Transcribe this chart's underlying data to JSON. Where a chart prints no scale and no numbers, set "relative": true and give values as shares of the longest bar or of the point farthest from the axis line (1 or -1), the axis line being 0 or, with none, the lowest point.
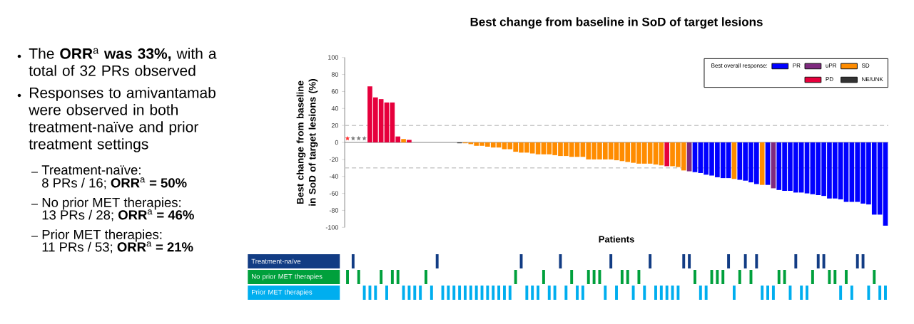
{
  "chart_data": [
    {
      "type": "bar",
      "title": "Best change from baseline in SoD of target lesions",
      "xlabel": "Patients",
      "ylabel": "Best change from baseline in SoD of target lesions (%)",
      "categories": [
        null,
        null,
        null,
        null,
        null,
        null,
        null,
        null,
        null,
        null,
        null,
        null,
        null,
        null,
        null,
        null,
        null,
        null,
        null,
        null,
        null,
        null,
        null,
        null,
        null,
        null,
        null,
        null,
        null,
        null,
        null,
        null,
        null,
        null,
        null,
        null,
        null,
        null,
        null,
        null,
        null,
        null,
        null,
        null,
        null,
        null,
        null,
        null,
        null,
        null,
        null,
        null,
        null,
        null,
        null,
        null,
        null,
        null,
        null,
        null,
        null,
        null,
        null,
        null,
        null,
        null,
        null,
        null,
        null,
        null,
        null,
        null,
        null,
        null,
        null,
        null,
        null,
        null,
        null,
        null,
        null,
        null,
        null,
        null,
        null,
        null,
        null,
        null,
        null,
        null,
        null,
        null,
        null,
        null,
        null,
        null,
        null
      ],
      "ylim": [
        -100,
        100
      ],
      "yticks": [
        -100,
        -80,
        -60,
        -40,
        -20,
        0,
        20,
        40,
        60,
        80,
        100
      ],
      "legend": "top right",
      "legend_title": "Best overall response:",
      "marker": "star",
      "series": [
        {
          "name": "PR",
          "color": "#0000ff",
          "values": [
            null,
            null,
            null,
            null,
            null,
            null,
            null,
            null,
            null,
            null,
            null,
            null,
            null,
            null,
            null,
            null,
            null,
            null,
            null,
            null,
            null,
            null,
            null,
            null,
            null,
            null,
            null,
            null,
            null,
            null,
            null,
            null,
            null,
            null,
            null,
            null,
            null,
            null,
            null,
            null,
            null,
            null,
            null,
            null,
            null,
            null,
            null,
            null,
            null,
            null,
            null,
            null,
            null,
            null,
            null,
            null,
            null,
            null,
            null,
            null,
            null,
            null,
            -35,
            -36,
            -38,
            -39,
            -41,
            -42,
            -42,
            null,
            -44,
            -45,
            -47,
            -49,
            null,
            -50,
            null,
            -56,
            -57,
            -57,
            -59,
            -59,
            -60,
            -61,
            -62,
            -63,
            -66,
            -66,
            -67,
            -70,
            -70,
            -70,
            -72,
            -73,
            -85,
            -85,
            -98
          ]
        },
        {
          "name": "uPR",
          "color": "#7f2a7f",
          "values": [
            null,
            null,
            null,
            null,
            null,
            null,
            null,
            null,
            null,
            null,
            null,
            null,
            null,
            null,
            null,
            null,
            null,
            null,
            null,
            null,
            null,
            null,
            null,
            null,
            null,
            null,
            null,
            null,
            null,
            null,
            null,
            null,
            null,
            null,
            null,
            null,
            null,
            null,
            null,
            null,
            null,
            null,
            null,
            null,
            null,
            null,
            null,
            null,
            null,
            null,
            null,
            null,
            null,
            null,
            null,
            null,
            null,
            null,
            null,
            null,
            null,
            -34,
            null,
            null,
            null,
            null,
            null,
            null,
            null,
            null,
            null,
            null,
            null,
            null,
            null,
            null,
            -54,
            null,
            null,
            null,
            null,
            null,
            null,
            null,
            null,
            null,
            null,
            null,
            null,
            null,
            null,
            null,
            null,
            null,
            null,
            null,
            null
          ]
        },
        {
          "name": "SD",
          "color": "#ff8c00",
          "values": [
            null,
            null,
            null,
            null,
            null,
            null,
            null,
            null,
            null,
            null,
            4,
            null,
            0,
            0,
            0,
            0,
            0,
            0,
            0,
            0,
            null,
            -1,
            -2,
            -4,
            -4,
            -5,
            -6,
            -6,
            -8,
            -8,
            -11,
            -12,
            -12,
            -13,
            -14,
            -14,
            -14,
            -15,
            -16,
            -16,
            -17,
            -17,
            -17,
            -20,
            -20,
            -20,
            -20,
            -20,
            -21,
            -22,
            -23,
            -24,
            -25,
            -25,
            -25,
            -26,
            -27,
            null,
            -28,
            -29,
            -33,
            null,
            null,
            null,
            null,
            null,
            null,
            null,
            null,
            -43,
            null,
            null,
            null,
            null,
            -50,
            null,
            null,
            null,
            null,
            null,
            null,
            null,
            null,
            null,
            null,
            null,
            null,
            null,
            null,
            null,
            null,
            null,
            null,
            null,
            null,
            null,
            null
          ]
        },
        {
          "name": "PD",
          "color": "#e6003c",
          "values": [
            null,
            null,
            null,
            null,
            66,
            53,
            51,
            47,
            47,
            7,
            null,
            3,
            null,
            null,
            null,
            null,
            null,
            null,
            null,
            null,
            null,
            null,
            null,
            null,
            null,
            null,
            null,
            null,
            null,
            null,
            null,
            null,
            null,
            null,
            null,
            null,
            null,
            null,
            null,
            null,
            null,
            null,
            null,
            null,
            null,
            null,
            null,
            null,
            null,
            null,
            null,
            null,
            null,
            null,
            null,
            null,
            null,
            -28,
            null,
            null,
            null,
            null,
            null,
            null,
            null,
            null,
            null,
            null,
            null,
            null,
            null,
            null,
            null,
            null,
            null,
            null,
            null,
            null,
            null,
            null,
            null,
            null,
            null,
            null,
            null,
            null,
            null,
            null,
            null,
            null,
            null,
            null,
            null,
            null,
            null,
            null,
            null
          ]
        },
        {
          "name": "NE/UNK",
          "color": "#333333",
          "values": [
            null,
            null,
            null,
            null,
            null,
            null,
            null,
            null,
            null,
            null,
            null,
            null,
            null,
            null,
            null,
            null,
            null,
            null,
            null,
            null,
            -1,
            null,
            null,
            null,
            null,
            null,
            null,
            null,
            null,
            null,
            null,
            null,
            null,
            null,
            null,
            null,
            null,
            null,
            null,
            null,
            null,
            null,
            null,
            null,
            null,
            null,
            null,
            null,
            null,
            null,
            null,
            null,
            null,
            null,
            null,
            null,
            null,
            null,
            null,
            null,
            null,
            null,
            null,
            null,
            null,
            null,
            null,
            null,
            null,
            null,
            null,
            null,
            null,
            null,
            null,
            null,
            null,
            null,
            null,
            null,
            null,
            null,
            null,
            null,
            null,
            null,
            null,
            null,
            null,
            null,
            null,
            null,
            null,
            null,
            null,
            null,
            null
          ]
        },
        {
          "type": "scatter",
          "color": "#ff3333",
          "values": [
            5,
            null,
            null,
            null,
            null,
            null,
            null,
            null,
            null,
            null,
            null,
            null,
            null,
            null,
            null,
            null,
            null,
            null,
            null,
            null,
            null,
            null,
            null,
            null,
            null,
            null,
            null,
            null,
            null,
            null,
            null,
            null,
            null,
            null,
            null,
            null,
            null,
            null,
            null,
            null,
            null,
            null,
            null,
            null,
            null,
            null,
            null,
            null,
            null,
            null,
            null,
            null,
            null,
            null,
            null,
            null,
            null,
            null,
            null,
            null,
            null,
            null,
            null,
            null,
            null,
            null,
            null,
            null,
            null,
            null,
            null,
            null,
            null,
            null,
            null,
            null,
            null,
            null,
            null,
            null,
            null,
            null,
            null,
            null,
            null,
            null,
            null,
            null,
            null,
            null,
            null,
            null,
            null,
            null,
            null,
            null,
            null
          ]
        },
        {
          "type": "scatter",
          "color": "#808080",
          "values": [
            null,
            5,
            5,
            5,
            null,
            null,
            null,
            null,
            null,
            null,
            null,
            null,
            null,
            null,
            null,
            null,
            null,
            null,
            null,
            null,
            null,
            null,
            null,
            null,
            null,
            null,
            null,
            null,
            null,
            null,
            null,
            null,
            null,
            null,
            null,
            null,
            null,
            null,
            null,
            null,
            null,
            null,
            null,
            null,
            null,
            null,
            null,
            null,
            null,
            null,
            null,
            null,
            null,
            null,
            null,
            null,
            null,
            null,
            null,
            null,
            null,
            null,
            null,
            null,
            null,
            null,
            null,
            null,
            null,
            null,
            null,
            null,
            null,
            null,
            null,
            null,
            null,
            null,
            null,
            null,
            null,
            null,
            null,
            null,
            null,
            null,
            null,
            null,
            null,
            null,
            null,
            null,
            null,
            null,
            null,
            null,
            null
          ]
        }
      ],
      "ref_lines": [
        {
          "axis": "y",
          "value": 20,
          "color": "#c8c8c8",
          "line_style": "dashed"
        },
        {
          "axis": "y",
          "value": -30,
          "color": "#c8c8c8",
          "line_style": "dashed"
        }
      ],
      "annotations": [
        "The **ORR**$^{a}$ **was 33%,** with a total of 32 PRs observed",
        "Responses to amivantamab were observed in both treatment-naïve and prior treatment settings",
        "Treatment-naïve:",
        "8 PRs / 16; **ORR**$^{a}$ **= 50%**",
        "No prior MET therapies:",
        "13 PRs / 28; **ORR**$^{a}$ **= 46%**",
        "Prior MET therapies:",
        "11 PRs / 53; **ORR**$^{a}$ **= 21%**"
      ]
    },
    {
      "type": "bar",
      "relative": true,
      "categories": [
        null,
        null,
        null,
        null,
        null,
        null,
        null,
        null,
        null,
        null,
        null,
        null,
        null,
        null,
        null,
        null,
        null,
        null,
        null,
        null,
        null,
        null,
        null,
        null,
        null,
        null,
        null,
        null,
        null,
        null,
        null,
        null,
        null,
        null,
        null,
        null,
        null,
        null,
        null,
        null,
        null,
        null,
        null,
        null,
        null,
        null,
        null,
        null,
        null,
        null,
        null,
        null,
        null,
        null,
        null,
        null,
        null,
        null,
        null,
        null,
        null,
        null,
        null,
        null,
        null,
        null,
        null,
        null,
        null,
        null,
        null,
        null,
        null,
        null,
        null,
        null,
        null,
        null,
        null,
        null,
        null,
        null,
        null,
        null,
        null,
        null,
        null,
        null,
        null,
        null,
        null,
        null,
        null,
        null,
        null,
        null,
        null
      ],
      "series": [
        {
          "name": "Treatment-naïve",
          "color": "#123c84",
          "values": [
            null,
            1,
            null,
            null,
            null,
            null,
            null,
            null,
            null,
            null,
            null,
            null,
            null,
            null,
            null,
            null,
            1,
            null,
            null,
            null,
            null,
            null,
            null,
            null,
            null,
            null,
            null,
            null,
            null,
            null,
            null,
            1,
            null,
            null,
            null,
            null,
            null,
            null,
            1,
            null,
            null,
            null,
            null,
            null,
            null,
            null,
            null,
            1,
            null,
            null,
            null,
            null,
            null,
            null,
            1,
            null,
            null,
            null,
            null,
            null,
            1,
            1,
            null,
            null,
            null,
            null,
            null,
            null,
            1,
            null,
            null,
            1,
            null,
            1,
            null,
            null,
            null,
            null,
            null,
            null,
            1,
            null,
            null,
            null,
            1,
            1,
            null,
            null,
            null,
            null,
            null,
            1,
            1,
            null,
            null,
            null,
            null
          ]
        }
      ]
    },
    {
      "type": "bar",
      "relative": true,
      "categories": [
        null,
        null,
        null,
        null,
        null,
        null,
        null,
        null,
        null,
        null,
        null,
        null,
        null,
        null,
        null,
        null,
        null,
        null,
        null,
        null,
        null,
        null,
        null,
        null,
        null,
        null,
        null,
        null,
        null,
        null,
        null,
        null,
        null,
        null,
        null,
        null,
        null,
        null,
        null,
        null,
        null,
        null,
        null,
        null,
        null,
        null,
        null,
        null,
        null,
        null,
        null,
        null,
        null,
        null,
        null,
        null,
        null,
        null,
        null,
        null,
        null,
        null,
        null,
        null,
        null,
        null,
        null,
        null,
        null,
        null,
        null,
        null,
        null,
        null,
        null,
        null,
        null,
        null,
        null,
        null,
        null,
        null,
        null,
        null,
        null,
        null,
        null,
        null,
        null,
        null,
        null,
        null,
        null,
        null,
        null,
        null,
        null
      ],
      "series": [
        {
          "name": "No prior MET therapies",
          "color": "#00a03c",
          "values": [
            1,
            null,
            1,
            null,
            null,
            null,
            1,
            null,
            1,
            1,
            null,
            null,
            null,
            null,
            1,
            null,
            null,
            null,
            null,
            null,
            null,
            null,
            null,
            null,
            null,
            null,
            null,
            null,
            null,
            null,
            1,
            null,
            null,
            null,
            null,
            1,
            null,
            null,
            null,
            null,
            1,
            null,
            null,
            1,
            1,
            1,
            null,
            null,
            null,
            1,
            1,
            null,
            1,
            null,
            null,
            null,
            null,
            null,
            null,
            null,
            null,
            null,
            1,
            null,
            null,
            1,
            1,
            1,
            null,
            null,
            1,
            null,
            1,
            null,
            null,
            null,
            null,
            1,
            1,
            null,
            null,
            null,
            null,
            1,
            null,
            null,
            1,
            1,
            null,
            1,
            null,
            null,
            null,
            null,
            1,
            null,
            null
          ]
        }
      ]
    },
    {
      "type": "bar",
      "relative": true,
      "categories": [
        null,
        null,
        null,
        null,
        null,
        null,
        null,
        null,
        null,
        null,
        null,
        null,
        null,
        null,
        null,
        null,
        null,
        null,
        null,
        null,
        null,
        null,
        null,
        null,
        null,
        null,
        null,
        null,
        null,
        null,
        null,
        null,
        null,
        null,
        null,
        null,
        null,
        null,
        null,
        null,
        null,
        null,
        null,
        null,
        null,
        null,
        null,
        null,
        null,
        null,
        null,
        null,
        null,
        null,
        null,
        null,
        null,
        null,
        null,
        null,
        null,
        null,
        null,
        null,
        null,
        null,
        null,
        null,
        null,
        null,
        null,
        null,
        null,
        null,
        null,
        null,
        null,
        null,
        null,
        null,
        null,
        null,
        null,
        null,
        null,
        null,
        null,
        null,
        null,
        null,
        null,
        null,
        null,
        null,
        null,
        null,
        null
      ],
      "series": [
        {
          "name": "Prior MET therapies",
          "color": "#00aeef",
          "values": [
            null,
            null,
            null,
            1,
            1,
            1,
            null,
            1,
            null,
            null,
            1,
            1,
            1,
            1,
            null,
            1,
            null,
            1,
            1,
            1,
            1,
            1,
            1,
            1,
            1,
            1,
            1,
            1,
            1,
            1,
            null,
            null,
            1,
            1,
            1,
            null,
            1,
            1,
            null,
            1,
            null,
            1,
            1,
            null,
            null,
            null,
            1,
            null,
            1,
            null,
            null,
            1,
            null,
            1,
            null,
            1,
            1,
            1,
            1,
            1,
            null,
            null,
            null,
            1,
            1,
            null,
            null,
            null,
            null,
            1,
            null,
            null,
            null,
            null,
            1,
            1,
            1,
            null,
            null,
            1,
            null,
            1,
            1,
            null,
            null,
            null,
            null,
            null,
            1,
            null,
            1,
            null,
            null,
            1,
            null,
            1,
            1
          ]
        }
      ]
    }
  ]
}
